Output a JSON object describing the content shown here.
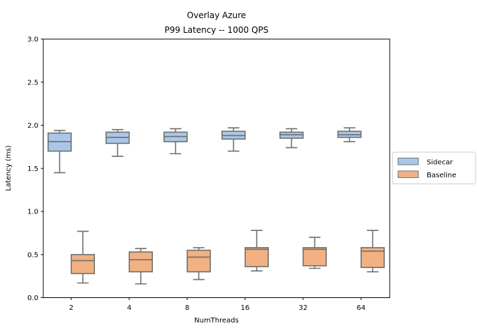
{
  "figure": {
    "title_lines": [
      "Overlay Azure",
      "P99 Latency -- 1000 QPS"
    ],
    "background": "#ffffff",
    "frame_color": "#000000",
    "box_edge_color": "#6f6f6f",
    "legend_border_color": "#cccccc"
  },
  "chart_data": {
    "type": "boxplot",
    "title": "Overlay Azure\nP99 Latency -- 1000 QPS",
    "xlabel": "NumThreads",
    "ylabel": "Latency (ms)",
    "ylim": [
      0.0,
      3.0
    ],
    "yticks": [
      0.0,
      0.5,
      1.0,
      1.5,
      2.0,
      2.5,
      3.0
    ],
    "ytick_format_decimals": 1,
    "categories": [
      "2",
      "4",
      "8",
      "16",
      "32",
      "64"
    ],
    "grid": false,
    "legend_position": "center-right-outside",
    "series": [
      {
        "name": "Sidecar",
        "color": "#aac7e8",
        "boxes": [
          {
            "whislo": 1.45,
            "q1": 1.7,
            "med": 1.81,
            "q3": 1.91,
            "whishi": 1.94
          },
          {
            "whislo": 1.64,
            "q1": 1.79,
            "med": 1.86,
            "q3": 1.92,
            "whishi": 1.95
          },
          {
            "whislo": 1.67,
            "q1": 1.81,
            "med": 1.87,
            "q3": 1.92,
            "whishi": 1.96
          },
          {
            "whislo": 1.7,
            "q1": 1.84,
            "med": 1.88,
            "q3": 1.93,
            "whishi": 1.97
          },
          {
            "whislo": 1.74,
            "q1": 1.85,
            "med": 1.89,
            "q3": 1.92,
            "whishi": 1.96
          },
          {
            "whislo": 1.81,
            "q1": 1.86,
            "med": 1.89,
            "q3": 1.93,
            "whishi": 1.97
          }
        ]
      },
      {
        "name": "Baseline",
        "color": "#f1b183",
        "boxes": [
          {
            "whislo": 0.17,
            "q1": 0.28,
            "med": 0.43,
            "q3": 0.5,
            "whishi": 0.77
          },
          {
            "whislo": 0.16,
            "q1": 0.3,
            "med": 0.44,
            "q3": 0.53,
            "whishi": 0.57
          },
          {
            "whislo": 0.21,
            "q1": 0.3,
            "med": 0.47,
            "q3": 0.55,
            "whishi": 0.58
          },
          {
            "whislo": 0.31,
            "q1": 0.36,
            "med": 0.56,
            "q3": 0.58,
            "whishi": 0.78
          },
          {
            "whislo": 0.34,
            "q1": 0.37,
            "med": 0.56,
            "q3": 0.58,
            "whishi": 0.7
          },
          {
            "whislo": 0.3,
            "q1": 0.35,
            "med": 0.54,
            "q3": 0.58,
            "whishi": 0.78
          }
        ]
      }
    ]
  }
}
